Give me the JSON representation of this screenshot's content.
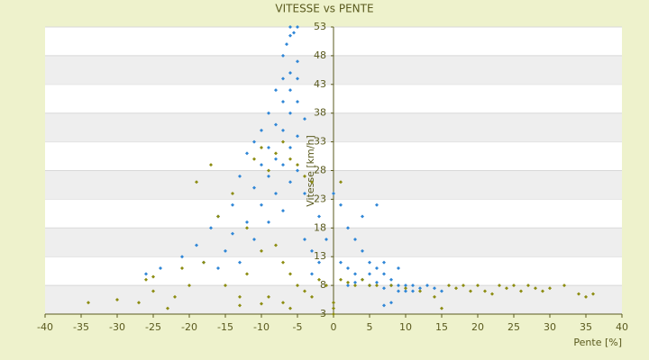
{
  "chart_data": {
    "type": "scatter",
    "title": "VITESSE vs PENTE",
    "x_label": "Pente [%]",
    "y_label": "Vitesse [km/h]",
    "xlim": [
      -40,
      40
    ],
    "xticks": [
      -40,
      -35,
      -30,
      -25,
      -20,
      -15,
      -10,
      -5,
      0,
      5,
      10,
      15,
      20,
      25,
      30,
      35,
      40
    ],
    "ylim": [
      3,
      53
    ],
    "yticks": [
      3,
      8,
      13,
      18,
      23,
      28,
      33,
      38,
      43,
      48,
      53
    ],
    "grid": true,
    "series": [
      {
        "color": "#2f86d6",
        "x": [
          -6,
          -5.5,
          -6,
          -5,
          -6.5,
          -7,
          -5,
          -6,
          -7,
          -5,
          -8,
          -6,
          -5,
          -7,
          -9,
          -6,
          -4,
          -8,
          -10,
          -7,
          -5,
          -11,
          -9,
          -6,
          -12,
          -8,
          -10,
          -7,
          -5,
          -13,
          -9,
          -6,
          -11,
          -8,
          -4,
          -14,
          -10,
          -7,
          -16,
          -12,
          -9,
          -17,
          -14,
          -11,
          -19,
          -15,
          -21,
          -18,
          -24,
          -26,
          -13,
          -16,
          -2,
          -1,
          0,
          1,
          2,
          3,
          4,
          5,
          6,
          7,
          8,
          9,
          10,
          11,
          12,
          13,
          14,
          15,
          2,
          3,
          4,
          5,
          6,
          7,
          8,
          9,
          10,
          11,
          6,
          4,
          1,
          2,
          3,
          5,
          7,
          9,
          8,
          7,
          -3,
          -2,
          -4,
          -3
        ],
        "values": [
          53,
          52,
          51.5,
          53,
          50,
          48,
          47,
          45,
          44,
          44,
          42,
          42,
          40,
          40,
          38,
          38,
          37,
          36,
          35,
          35,
          34,
          33,
          32,
          32,
          31,
          30,
          29,
          29,
          28,
          27,
          27,
          26,
          25,
          24,
          24,
          22,
          22,
          21,
          20,
          19,
          19,
          18,
          17,
          16,
          15,
          14,
          13,
          12,
          11,
          10,
          12,
          11,
          20,
          16,
          24,
          22,
          18,
          16,
          14,
          12,
          11,
          10,
          9,
          8,
          8,
          8,
          7.5,
          8,
          7.5,
          7,
          8,
          8.5,
          9,
          8,
          8.5,
          7.5,
          8,
          7,
          7,
          7,
          22,
          20,
          12,
          11,
          10,
          10,
          12,
          11,
          5,
          4.5,
          10,
          12,
          16,
          14
        ]
      },
      {
        "color": "#8c8c10",
        "x": [
          -34,
          -30,
          -27,
          -26,
          -25,
          -22,
          -20,
          -19,
          -17,
          -15,
          -13,
          -12,
          -11,
          -10,
          -9,
          -8,
          -7,
          -6,
          -5,
          -4,
          -3,
          -8,
          -7,
          -6,
          -5,
          -4,
          -3,
          -2,
          -1,
          0,
          0,
          0,
          1,
          1,
          2,
          3,
          4,
          5,
          6,
          8,
          10,
          12,
          14,
          15,
          16,
          17,
          18,
          19,
          20,
          21,
          22,
          23,
          24,
          25,
          26,
          27,
          28,
          29,
          30,
          32,
          34,
          35,
          36,
          -18,
          -16,
          -14,
          -12,
          -10,
          -9,
          -7,
          -6,
          -23,
          -25,
          -21,
          -13,
          -10
        ],
        "values": [
          5,
          5.5,
          5,
          9,
          7,
          6,
          8,
          26,
          29,
          8,
          6,
          10,
          30,
          32,
          28,
          31,
          33,
          30,
          29,
          27,
          26,
          15,
          12,
          10,
          8,
          7,
          6,
          9,
          8,
          5,
          4,
          3,
          26,
          9,
          8.5,
          8,
          9,
          8,
          8,
          8,
          7.5,
          7,
          6,
          4,
          8,
          7.5,
          8,
          7,
          8,
          7,
          6.5,
          8,
          7.5,
          8,
          7,
          8,
          7.5,
          7,
          7.5,
          8,
          6.5,
          6,
          6.5,
          12,
          20,
          24,
          18,
          14,
          6,
          5,
          4,
          4,
          9.5,
          11,
          4.5,
          4.8
        ]
      }
    ]
  }
}
